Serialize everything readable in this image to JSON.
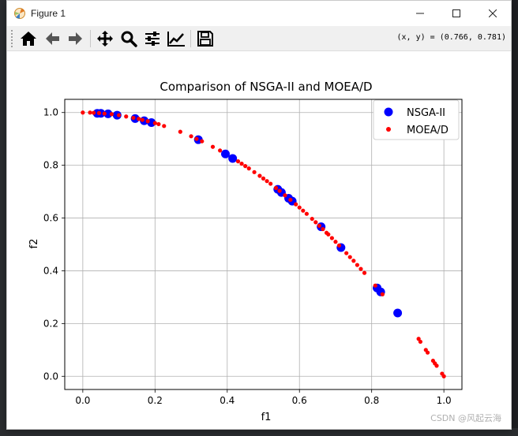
{
  "window": {
    "title": "Figure 1"
  },
  "toolbar": {
    "buttons": [
      "home-icon",
      "back-icon",
      "forward-icon",
      "pan-icon",
      "zoom-icon",
      "configure-subplots-icon",
      "edit-axis-icon",
      "save-icon"
    ],
    "coords": "(x, y) = (0.766, 0.781)"
  },
  "watermark": "CSDN @风起云海",
  "chart_data": {
    "type": "scatter",
    "title": "Comparison of NSGA-II and MOEA/D",
    "xlabel": "f1",
    "ylabel": "f2",
    "xlim": [
      -0.05,
      1.05
    ],
    "ylim": [
      -0.05,
      1.05
    ],
    "xticks": [
      0.0,
      0.2,
      0.4,
      0.6,
      0.8,
      1.0
    ],
    "yticks": [
      0.0,
      0.2,
      0.4,
      0.6,
      0.8,
      1.0
    ],
    "xtick_labels": [
      "0.0",
      "0.2",
      "0.4",
      "0.6",
      "0.8",
      "1.0"
    ],
    "ytick_labels": [
      "0.0",
      "0.2",
      "0.4",
      "0.6",
      "0.8",
      "1.0"
    ],
    "grid": true,
    "legend_position": "top-right",
    "series": [
      {
        "name": "NSGA-II",
        "color": "#0000ff",
        "marker": "large-circle",
        "points": [
          [
            0.04,
            0.997
          ],
          [
            0.05,
            0.997
          ],
          [
            0.07,
            0.995
          ],
          [
            0.095,
            0.99
          ],
          [
            0.145,
            0.977
          ],
          [
            0.17,
            0.969
          ],
          [
            0.19,
            0.962
          ],
          [
            0.32,
            0.897
          ],
          [
            0.395,
            0.843
          ],
          [
            0.415,
            0.826
          ],
          [
            0.54,
            0.709
          ],
          [
            0.55,
            0.697
          ],
          [
            0.57,
            0.675
          ],
          [
            0.58,
            0.664
          ],
          [
            0.66,
            0.567
          ],
          [
            0.715,
            0.488
          ],
          [
            0.815,
            0.335
          ],
          [
            0.825,
            0.32
          ],
          [
            0.872,
            0.24
          ]
        ]
      },
      {
        "name": "MOEA/D",
        "color": "#ff0000",
        "marker": "small-dot",
        "points": [
          [
            0.0,
            1.0
          ],
          [
            0.02,
            1.0
          ],
          [
            0.03,
            0.999
          ],
          [
            0.045,
            0.998
          ],
          [
            0.06,
            0.996
          ],
          [
            0.08,
            0.994
          ],
          [
            0.1,
            0.99
          ],
          [
            0.12,
            0.985
          ],
          [
            0.14,
            0.98
          ],
          [
            0.155,
            0.976
          ],
          [
            0.165,
            0.972
          ],
          [
            0.18,
            0.967
          ],
          [
            0.2,
            0.96
          ],
          [
            0.21,
            0.956
          ],
          [
            0.225,
            0.949
          ],
          [
            0.27,
            0.927
          ],
          [
            0.3,
            0.91
          ],
          [
            0.315,
            0.9
          ],
          [
            0.33,
            0.891
          ],
          [
            0.36,
            0.87
          ],
          [
            0.38,
            0.856
          ],
          [
            0.43,
            0.815
          ],
          [
            0.44,
            0.806
          ],
          [
            0.45,
            0.797
          ],
          [
            0.46,
            0.788
          ],
          [
            0.475,
            0.774
          ],
          [
            0.49,
            0.76
          ],
          [
            0.5,
            0.75
          ],
          [
            0.51,
            0.74
          ],
          [
            0.52,
            0.73
          ],
          [
            0.535,
            0.714
          ],
          [
            0.545,
            0.703
          ],
          [
            0.56,
            0.686
          ],
          [
            0.575,
            0.669
          ],
          [
            0.59,
            0.652
          ],
          [
            0.6,
            0.64
          ],
          [
            0.61,
            0.628
          ],
          [
            0.62,
            0.616
          ],
          [
            0.635,
            0.597
          ],
          [
            0.645,
            0.584
          ],
          [
            0.655,
            0.571
          ],
          [
            0.665,
            0.558
          ],
          [
            0.675,
            0.544
          ],
          [
            0.68,
            0.538
          ],
          [
            0.69,
            0.524
          ],
          [
            0.7,
            0.51
          ],
          [
            0.71,
            0.496
          ],
          [
            0.73,
            0.467
          ],
          [
            0.74,
            0.452
          ],
          [
            0.75,
            0.438
          ],
          [
            0.76,
            0.422
          ],
          [
            0.77,
            0.407
          ],
          [
            0.78,
            0.392
          ],
          [
            0.81,
            0.344
          ],
          [
            0.83,
            0.311
          ],
          [
            0.93,
            0.142
          ],
          [
            0.935,
            0.131
          ],
          [
            0.95,
            0.1
          ],
          [
            0.955,
            0.09
          ],
          [
            0.97,
            0.059
          ],
          [
            0.975,
            0.049
          ],
          [
            0.98,
            0.04
          ],
          [
            0.995,
            0.01
          ],
          [
            1.0,
            0.0
          ]
        ]
      }
    ]
  }
}
